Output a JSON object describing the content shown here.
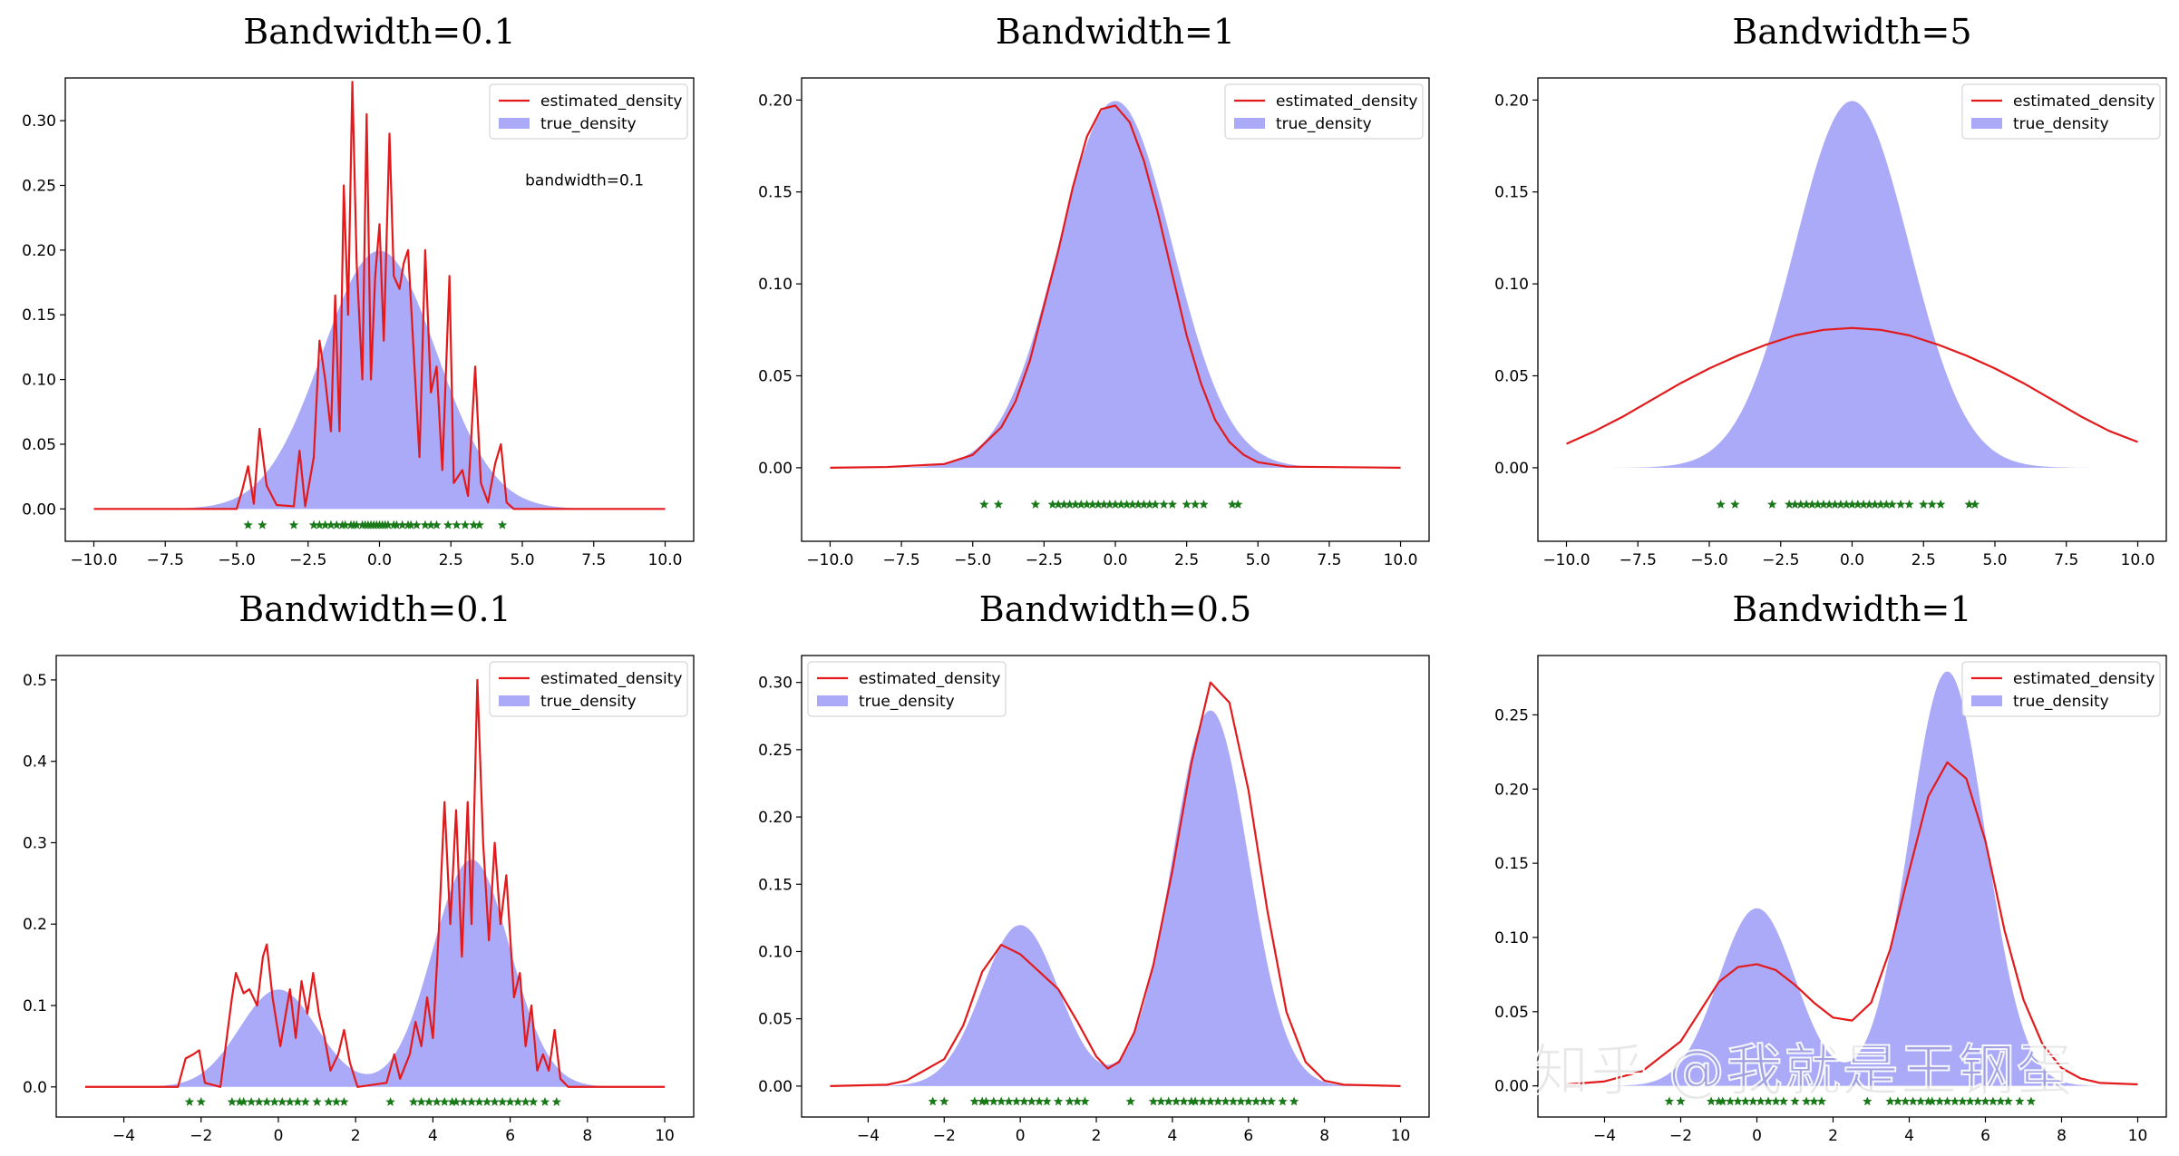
{
  "watermark": "知乎 @我就是王钢蛋",
  "colors": {
    "estimated": "#e31a1c",
    "true_fill": "#aaaaf8",
    "samples": "#1a7a1a"
  },
  "chart_data": [
    {
      "type": "area",
      "title": "Bandwidth=0.1",
      "distribution": "unimodal",
      "xlim": [
        -10,
        10
      ],
      "ylim": [
        -0.025,
        0.333
      ],
      "xticks": [
        -10.0,
        -7.5,
        -5.0,
        -2.5,
        0.0,
        2.5,
        5.0,
        7.5,
        10.0
      ],
      "yticks": [
        0.0,
        0.05,
        0.1,
        0.15,
        0.2,
        0.25,
        0.3
      ],
      "tick_decimals": [
        1,
        2
      ],
      "legend": {
        "position": "top-right",
        "entries": [
          "estimated_density",
          "true_density"
        ]
      },
      "annotation": "bandwidth=0.1",
      "true_density": {
        "components": [
          {
            "mean": 0,
            "sd": 2,
            "weight": 1
          }
        ]
      },
      "estimated_density": [
        [
          -10,
          0
        ],
        [
          -5,
          0
        ],
        [
          -4.8,
          0.015
        ],
        [
          -4.6,
          0.033
        ],
        [
          -4.4,
          0.004
        ],
        [
          -4.2,
          0.062
        ],
        [
          -3.95,
          0.018
        ],
        [
          -3.6,
          0.003
        ],
        [
          -3.0,
          0.002
        ],
        [
          -2.8,
          0.045
        ],
        [
          -2.6,
          0.002
        ],
        [
          -2.3,
          0.04
        ],
        [
          -2.1,
          0.13
        ],
        [
          -1.9,
          0.1
        ],
        [
          -1.7,
          0.06
        ],
        [
          -1.55,
          0.165
        ],
        [
          -1.4,
          0.06
        ],
        [
          -1.25,
          0.25
        ],
        [
          -1.1,
          0.15
        ],
        [
          -0.95,
          0.33
        ],
        [
          -0.8,
          0.19
        ],
        [
          -0.6,
          0.1
        ],
        [
          -0.45,
          0.305
        ],
        [
          -0.3,
          0.1
        ],
        [
          -0.15,
          0.18
        ],
        [
          0.0,
          0.22
        ],
        [
          0.15,
          0.13
        ],
        [
          0.35,
          0.29
        ],
        [
          0.5,
          0.18
        ],
        [
          0.7,
          0.17
        ],
        [
          0.85,
          0.19
        ],
        [
          1.0,
          0.2
        ],
        [
          1.2,
          0.12
        ],
        [
          1.4,
          0.04
        ],
        [
          1.6,
          0.2
        ],
        [
          1.8,
          0.09
        ],
        [
          2.0,
          0.11
        ],
        [
          2.2,
          0.03
        ],
        [
          2.45,
          0.18
        ],
        [
          2.6,
          0.02
        ],
        [
          2.9,
          0.03
        ],
        [
          3.1,
          0.01
        ],
        [
          3.35,
          0.11
        ],
        [
          3.55,
          0.02
        ],
        [
          3.8,
          0.005
        ],
        [
          4.05,
          0.035
        ],
        [
          4.25,
          0.05
        ],
        [
          4.45,
          0.005
        ],
        [
          4.7,
          0
        ],
        [
          10,
          0
        ]
      ],
      "samples": [
        -4.6,
        -4.1,
        -3.0,
        -2.3,
        -2.1,
        -1.9,
        -1.7,
        -1.5,
        -1.3,
        -1.2,
        -1.0,
        -0.9,
        -0.8,
        -0.6,
        -0.5,
        -0.4,
        -0.3,
        -0.2,
        -0.1,
        0.0,
        0.1,
        0.2,
        0.3,
        0.5,
        0.6,
        0.8,
        1.0,
        1.1,
        1.3,
        1.6,
        1.8,
        2.0,
        2.4,
        2.7,
        3.0,
        3.3,
        3.5,
        4.3
      ]
    },
    {
      "type": "area",
      "title": "Bandwidth=1",
      "distribution": "unimodal",
      "xlim": [
        -10,
        10
      ],
      "ylim": [
        -0.04,
        0.212
      ],
      "xticks": [
        -10.0,
        -7.5,
        -5.0,
        -2.5,
        0.0,
        2.5,
        5.0,
        7.5,
        10.0
      ],
      "yticks": [
        0.0,
        0.05,
        0.1,
        0.15,
        0.2
      ],
      "tick_decimals": [
        1,
        2
      ],
      "legend": {
        "position": "top-right",
        "entries": [
          "estimated_density",
          "true_density"
        ]
      },
      "true_density": {
        "components": [
          {
            "mean": 0,
            "sd": 2,
            "weight": 1
          }
        ]
      },
      "estimated_density": [
        [
          -10,
          0
        ],
        [
          -8,
          0.0004
        ],
        [
          -6,
          0.002
        ],
        [
          -5,
          0.007
        ],
        [
          -4,
          0.022
        ],
        [
          -3.5,
          0.036
        ],
        [
          -3,
          0.058
        ],
        [
          -2.5,
          0.088
        ],
        [
          -2,
          0.118
        ],
        [
          -1.5,
          0.152
        ],
        [
          -1,
          0.18
        ],
        [
          -0.5,
          0.195
        ],
        [
          0,
          0.197
        ],
        [
          0.5,
          0.188
        ],
        [
          1,
          0.167
        ],
        [
          1.5,
          0.138
        ],
        [
          2,
          0.105
        ],
        [
          2.5,
          0.072
        ],
        [
          3,
          0.046
        ],
        [
          3.5,
          0.026
        ],
        [
          4,
          0.014
        ],
        [
          4.5,
          0.007
        ],
        [
          5,
          0.003
        ],
        [
          6,
          0.0006
        ],
        [
          10,
          0
        ]
      ],
      "samples": [
        -4.6,
        -4.1,
        -2.8,
        -2.2,
        -2.0,
        -1.8,
        -1.6,
        -1.4,
        -1.2,
        -1.0,
        -0.8,
        -0.6,
        -0.4,
        -0.2,
        0.0,
        0.2,
        0.4,
        0.6,
        0.8,
        1.0,
        1.2,
        1.4,
        1.7,
        2.0,
        2.5,
        2.8,
        3.1,
        4.1,
        4.3
      ]
    },
    {
      "type": "area",
      "title": "Bandwidth=5",
      "distribution": "unimodal",
      "xlim": [
        -10,
        10
      ],
      "ylim": [
        -0.04,
        0.212
      ],
      "xticks": [
        -10.0,
        -7.5,
        -5.0,
        -2.5,
        0.0,
        2.5,
        5.0,
        7.5,
        10.0
      ],
      "yticks": [
        0.0,
        0.05,
        0.1,
        0.15,
        0.2
      ],
      "tick_decimals": [
        1,
        2
      ],
      "legend": {
        "position": "top-right",
        "entries": [
          "estimated_density",
          "true_density"
        ]
      },
      "true_density": {
        "components": [
          {
            "mean": 0,
            "sd": 2,
            "weight": 1
          }
        ]
      },
      "estimated_density": [
        [
          -10,
          0.013
        ],
        [
          -9,
          0.02
        ],
        [
          -8,
          0.028
        ],
        [
          -7,
          0.037
        ],
        [
          -6,
          0.046
        ],
        [
          -5,
          0.054
        ],
        [
          -4,
          0.061
        ],
        [
          -3,
          0.067
        ],
        [
          -2,
          0.072
        ],
        [
          -1,
          0.075
        ],
        [
          0,
          0.076
        ],
        [
          1,
          0.075
        ],
        [
          2,
          0.072
        ],
        [
          3,
          0.067
        ],
        [
          4,
          0.061
        ],
        [
          5,
          0.054
        ],
        [
          6,
          0.046
        ],
        [
          7,
          0.037
        ],
        [
          8,
          0.028
        ],
        [
          9,
          0.02
        ],
        [
          10,
          0.014
        ]
      ],
      "samples": [
        -4.6,
        -4.1,
        -2.8,
        -2.2,
        -2.0,
        -1.8,
        -1.6,
        -1.4,
        -1.2,
        -1.0,
        -0.8,
        -0.6,
        -0.4,
        -0.2,
        0.0,
        0.2,
        0.4,
        0.6,
        0.8,
        1.0,
        1.2,
        1.4,
        1.7,
        2.0,
        2.5,
        2.8,
        3.1,
        4.1,
        4.3
      ]
    },
    {
      "type": "area",
      "title": "Bandwidth=0.1",
      "distribution": "bimodal",
      "xlim": [
        -5,
        10
      ],
      "ylim": [
        -0.037,
        0.53
      ],
      "xticks": [
        -4,
        -2,
        0,
        2,
        4,
        6,
        8,
        10
      ],
      "yticks": [
        0.0,
        0.1,
        0.2,
        0.3,
        0.4,
        0.5
      ],
      "tick_decimals": [
        0,
        1
      ],
      "legend": {
        "position": "top-right",
        "entries": [
          "estimated_density",
          "true_density"
        ]
      },
      "true_density": {
        "components": [
          {
            "mean": 0,
            "sd": 1,
            "weight": 0.3
          },
          {
            "mean": 5,
            "sd": 1,
            "weight": 0.7
          }
        ]
      },
      "estimated_density": [
        [
          -5,
          0
        ],
        [
          -2.6,
          0
        ],
        [
          -2.4,
          0.035
        ],
        [
          -2.2,
          0.04
        ],
        [
          -2.05,
          0.045
        ],
        [
          -1.9,
          0.005
        ],
        [
          -1.5,
          0
        ],
        [
          -1.2,
          0.11
        ],
        [
          -1.1,
          0.14
        ],
        [
          -0.9,
          0.115
        ],
        [
          -0.75,
          0.12
        ],
        [
          -0.55,
          0.1
        ],
        [
          -0.4,
          0.16
        ],
        [
          -0.3,
          0.175
        ],
        [
          -0.15,
          0.11
        ],
        [
          0.05,
          0.05
        ],
        [
          0.3,
          0.12
        ],
        [
          0.45,
          0.06
        ],
        [
          0.6,
          0.13
        ],
        [
          0.75,
          0.09
        ],
        [
          0.9,
          0.14
        ],
        [
          1.05,
          0.09
        ],
        [
          1.2,
          0.06
        ],
        [
          1.35,
          0.02
        ],
        [
          1.55,
          0.04
        ],
        [
          1.7,
          0.07
        ],
        [
          1.85,
          0.03
        ],
        [
          2.05,
          0
        ],
        [
          2.8,
          0.005
        ],
        [
          3.0,
          0.04
        ],
        [
          3.15,
          0.01
        ],
        [
          3.4,
          0.04
        ],
        [
          3.55,
          0.08
        ],
        [
          3.7,
          0.05
        ],
        [
          3.85,
          0.11
        ],
        [
          4.0,
          0.06
        ],
        [
          4.15,
          0.19
        ],
        [
          4.3,
          0.35
        ],
        [
          4.45,
          0.2
        ],
        [
          4.6,
          0.34
        ],
        [
          4.75,
          0.16
        ],
        [
          4.9,
          0.35
        ],
        [
          5.0,
          0.2
        ],
        [
          5.15,
          0.5
        ],
        [
          5.3,
          0.3
        ],
        [
          5.45,
          0.18
        ],
        [
          5.6,
          0.3
        ],
        [
          5.75,
          0.2
        ],
        [
          5.9,
          0.26
        ],
        [
          6.1,
          0.11
        ],
        [
          6.25,
          0.14
        ],
        [
          6.4,
          0.05
        ],
        [
          6.55,
          0.1
        ],
        [
          6.7,
          0.02
        ],
        [
          6.85,
          0.04
        ],
        [
          7.0,
          0.02
        ],
        [
          7.15,
          0.07
        ],
        [
          7.3,
          0.01
        ],
        [
          7.5,
          0
        ],
        [
          10,
          0
        ]
      ],
      "samples": [
        -2.3,
        -2.0,
        -1.2,
        -1.0,
        -0.9,
        -0.7,
        -0.5,
        -0.3,
        -0.1,
        0.1,
        0.3,
        0.5,
        0.7,
        1.0,
        1.3,
        1.5,
        1.7,
        2.9,
        3.5,
        3.7,
        3.9,
        4.1,
        4.3,
        4.5,
        4.6,
        4.8,
        5.0,
        5.2,
        5.4,
        5.6,
        5.8,
        6.0,
        6.2,
        6.4,
        6.6,
        6.9,
        7.2
      ]
    },
    {
      "type": "area",
      "title": "Bandwidth=0.5",
      "distribution": "bimodal",
      "xlim": [
        -5,
        10
      ],
      "ylim": [
        -0.023,
        0.32
      ],
      "xticks": [
        -4,
        -2,
        0,
        2,
        4,
        6,
        8,
        10
      ],
      "yticks": [
        0.0,
        0.05,
        0.1,
        0.15,
        0.2,
        0.25,
        0.3
      ],
      "tick_decimals": [
        0,
        2
      ],
      "legend": {
        "position": "top-left",
        "entries": [
          "estimated_density",
          "true_density"
        ]
      },
      "true_density": {
        "components": [
          {
            "mean": 0,
            "sd": 1,
            "weight": 0.3
          },
          {
            "mean": 5,
            "sd": 1,
            "weight": 0.7
          }
        ]
      },
      "estimated_density": [
        [
          -5,
          0
        ],
        [
          -3.5,
          0.001
        ],
        [
          -3,
          0.004
        ],
        [
          -2.5,
          0.012
        ],
        [
          -2,
          0.02
        ],
        [
          -1.5,
          0.045
        ],
        [
          -1,
          0.085
        ],
        [
          -0.5,
          0.105
        ],
        [
          0,
          0.098
        ],
        [
          0.5,
          0.085
        ],
        [
          1,
          0.072
        ],
        [
          1.5,
          0.048
        ],
        [
          2,
          0.022
        ],
        [
          2.3,
          0.013
        ],
        [
          2.6,
          0.018
        ],
        [
          3,
          0.04
        ],
        [
          3.5,
          0.09
        ],
        [
          4,
          0.16
        ],
        [
          4.5,
          0.24
        ],
        [
          5,
          0.3
        ],
        [
          5.5,
          0.285
        ],
        [
          6,
          0.22
        ],
        [
          6.5,
          0.13
        ],
        [
          7,
          0.055
        ],
        [
          7.5,
          0.018
        ],
        [
          8,
          0.004
        ],
        [
          8.5,
          0.001
        ],
        [
          10,
          0
        ]
      ],
      "samples": [
        -2.3,
        -2.0,
        -1.2,
        -1.0,
        -0.9,
        -0.7,
        -0.5,
        -0.3,
        -0.1,
        0.1,
        0.3,
        0.5,
        0.7,
        1.0,
        1.3,
        1.5,
        1.7,
        2.9,
        3.5,
        3.7,
        3.9,
        4.1,
        4.3,
        4.5,
        4.6,
        4.8,
        5.0,
        5.2,
        5.4,
        5.6,
        5.8,
        6.0,
        6.2,
        6.4,
        6.6,
        6.9,
        7.2
      ]
    },
    {
      "type": "area",
      "title": "Bandwidth=1",
      "distribution": "bimodal",
      "xlim": [
        -5,
        10
      ],
      "ylim": [
        -0.021,
        0.29
      ],
      "xticks": [
        -4,
        -2,
        0,
        2,
        4,
        6,
        8,
        10
      ],
      "yticks": [
        0.0,
        0.05,
        0.1,
        0.15,
        0.2,
        0.25
      ],
      "tick_decimals": [
        0,
        2
      ],
      "legend": {
        "position": "top-right",
        "entries": [
          "estimated_density",
          "true_density"
        ]
      },
      "true_density": {
        "components": [
          {
            "mean": 0,
            "sd": 1,
            "weight": 0.3
          },
          {
            "mean": 5,
            "sd": 1,
            "weight": 0.7
          }
        ]
      },
      "estimated_density": [
        [
          -5,
          0.001
        ],
        [
          -4,
          0.003
        ],
        [
          -3,
          0.01
        ],
        [
          -2,
          0.03
        ],
        [
          -1.5,
          0.05
        ],
        [
          -1,
          0.07
        ],
        [
          -0.5,
          0.08
        ],
        [
          0,
          0.082
        ],
        [
          0.5,
          0.078
        ],
        [
          1,
          0.068
        ],
        [
          1.5,
          0.056
        ],
        [
          2,
          0.046
        ],
        [
          2.5,
          0.044
        ],
        [
          3,
          0.056
        ],
        [
          3.5,
          0.092
        ],
        [
          4,
          0.145
        ],
        [
          4.5,
          0.195
        ],
        [
          5,
          0.218
        ],
        [
          5.5,
          0.207
        ],
        [
          6,
          0.165
        ],
        [
          6.5,
          0.105
        ],
        [
          7,
          0.058
        ],
        [
          7.5,
          0.028
        ],
        [
          8,
          0.012
        ],
        [
          8.5,
          0.005
        ],
        [
          9,
          0.002
        ],
        [
          10,
          0.001
        ]
      ],
      "samples": [
        -2.3,
        -2.0,
        -1.2,
        -1.0,
        -0.9,
        -0.7,
        -0.5,
        -0.3,
        -0.1,
        0.1,
        0.3,
        0.5,
        0.7,
        1.0,
        1.3,
        1.5,
        1.7,
        2.9,
        3.5,
        3.7,
        3.9,
        4.1,
        4.3,
        4.5,
        4.6,
        4.8,
        5.0,
        5.2,
        5.4,
        5.6,
        5.8,
        6.0,
        6.2,
        6.4,
        6.6,
        6.9,
        7.2
      ]
    }
  ]
}
